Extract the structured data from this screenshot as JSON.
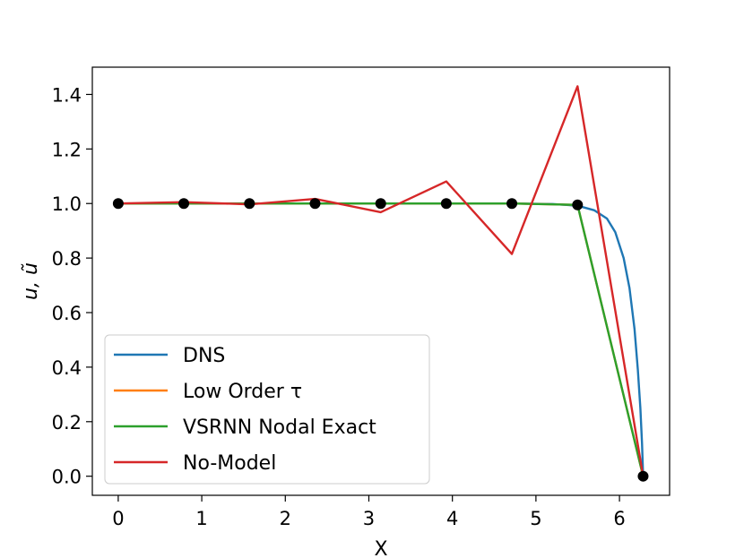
{
  "chart_data": {
    "type": "line",
    "title": "",
    "xlabel": "X",
    "ylabel": "u, ũ",
    "xlim": [
      -0.31,
      6.6
    ],
    "ylim": [
      -0.07,
      1.5
    ],
    "xticks": [
      0,
      1,
      2,
      3,
      4,
      5,
      6
    ],
    "xtick_labels": [
      "0",
      "1",
      "2",
      "3",
      "4",
      "5",
      "6"
    ],
    "yticks": [
      0.0,
      0.2,
      0.4,
      0.6,
      0.8,
      1.0,
      1.2,
      1.4
    ],
    "ytick_labels": [
      "0.0",
      "0.2",
      "0.4",
      "0.6",
      "0.8",
      "1.0",
      "1.2",
      "1.4"
    ],
    "grid": false,
    "legend_position": "lower-left",
    "series": [
      {
        "name": "DNS",
        "color": "#1f77b4",
        "x": [
          0,
          0.785,
          1.571,
          2.356,
          3.142,
          3.927,
          4.712,
          5.2,
          5.5,
          5.7,
          5.85,
          5.95,
          6.05,
          6.12,
          6.18,
          6.22,
          6.25,
          6.27,
          6.283
        ],
        "y": [
          1.0,
          1.0,
          1.0,
          1.0,
          1.0,
          1.0,
          1.0,
          0.998,
          0.992,
          0.975,
          0.945,
          0.895,
          0.8,
          0.69,
          0.54,
          0.39,
          0.25,
          0.12,
          0.0
        ]
      },
      {
        "name": "Low Order τ",
        "color": "#ff7f0e",
        "x": [
          0,
          0.785,
          1.571,
          2.356,
          3.142,
          3.927,
          4.712,
          5.498,
          6.283
        ],
        "y": [
          1.0,
          1.0,
          1.0,
          1.0,
          1.0,
          1.0,
          1.0,
          0.995,
          0.0
        ]
      },
      {
        "name": "VSRNN Nodal Exact",
        "color": "#2ca02c",
        "x": [
          0,
          0.785,
          1.571,
          2.356,
          3.142,
          3.927,
          4.712,
          5.498,
          6.283
        ],
        "y": [
          1.0,
          1.0,
          1.0,
          1.0,
          1.0,
          1.0,
          1.0,
          0.995,
          0.0
        ]
      },
      {
        "name": "No-Model",
        "color": "#d62728",
        "x": [
          0,
          0.785,
          1.571,
          2.356,
          3.142,
          3.927,
          4.712,
          5.498,
          6.283
        ],
        "y": [
          1.0,
          1.005,
          0.997,
          1.017,
          0.968,
          1.081,
          0.815,
          1.43,
          0.0
        ]
      }
    ],
    "markers": {
      "color": "#000000",
      "x": [
        0,
        0.785,
        1.571,
        2.356,
        3.142,
        3.927,
        4.712,
        5.498,
        6.283
      ],
      "y": [
        1.0,
        1.0,
        1.0,
        1.0,
        1.0,
        1.0,
        1.0,
        0.995,
        0.0
      ]
    }
  }
}
